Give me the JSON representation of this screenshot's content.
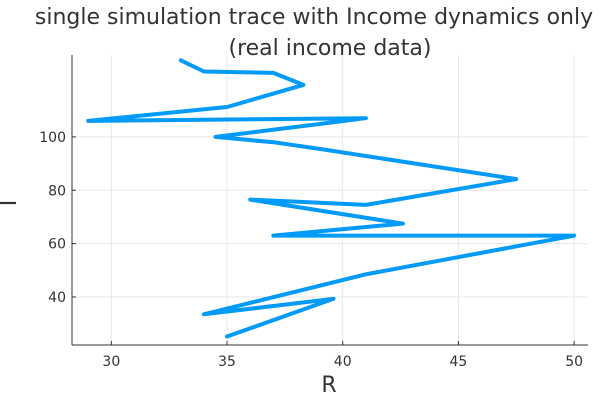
{
  "chart_data": {
    "type": "line",
    "title": "single simulation trace with Income dynamics only",
    "subtitle": "(real income data)",
    "xlabel": "R",
    "ylabel": "I",
    "xlim": [
      28.3,
      50.6
    ],
    "ylim": [
      22.0,
      130.7
    ],
    "xticks": [
      30,
      35,
      40,
      45,
      50
    ],
    "yticks": [
      40,
      60,
      80,
      100
    ],
    "grid": true,
    "legend": "none",
    "colors": {
      "series": "#009af9"
    },
    "series": [
      {
        "x": [
          33.0,
          34.0,
          37.0,
          38.3,
          35.0,
          29.0,
          41.0,
          34.5,
          37.0,
          39.0,
          47.5,
          41.0,
          36.0,
          42.6,
          37.0,
          50.0,
          41.0,
          34.0,
          39.6,
          35.0
        ],
        "y": [
          128.7,
          124.5,
          124.0,
          119.5,
          111.2,
          106.0,
          107.0,
          100.0,
          98.0,
          95.5,
          84.2,
          74.5,
          76.5,
          67.5,
          63.0,
          63.0,
          48.5,
          33.5,
          39.3,
          25.2
        ]
      }
    ]
  }
}
